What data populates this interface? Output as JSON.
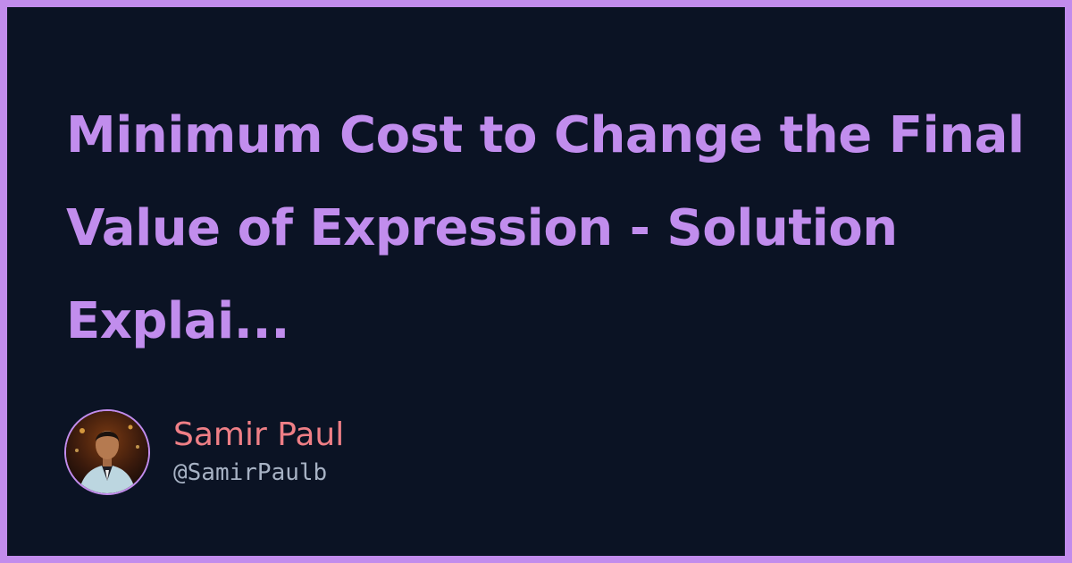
{
  "title": "Minimum Cost to Change the Final Value of Expression - Solution Explai...",
  "author": {
    "name": "Samir Paul",
    "handle": "@SamirPaulb",
    "avatar_icon": "author-photo"
  },
  "colors": {
    "frame": "#c28cec",
    "background": "#0b1324",
    "title": "#c18ded",
    "name": "#ef7f86",
    "handle": "#a7b2c4"
  }
}
